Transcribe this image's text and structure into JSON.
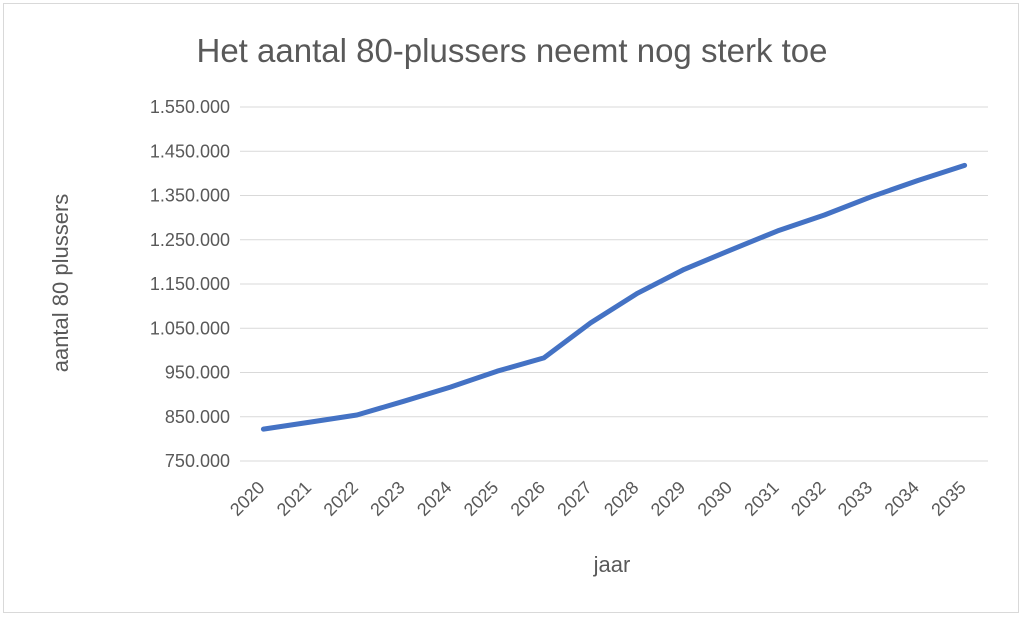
{
  "chart_data": {
    "type": "line",
    "title": "Het aantal 80-plussers neemt nog sterk toe",
    "xlabel": "jaar",
    "ylabel": "aantal 80 plussers",
    "categories": [
      "2020",
      "2021",
      "2022",
      "2023",
      "2024",
      "2025",
      "2026",
      "2027",
      "2028",
      "2029",
      "2030",
      "2031",
      "2032",
      "2033",
      "2034",
      "2035"
    ],
    "series": [
      {
        "values": [
          822000,
          838000,
          854000,
          885000,
          917000,
          953000,
          983000,
          1062000,
          1129000,
          1183000,
          1227000,
          1270000,
          1306000,
          1347000,
          1384000,
          1418000
        ]
      }
    ],
    "ylim": [
      750000,
      1550000
    ],
    "yticks": [
      750000,
      850000,
      950000,
      1050000,
      1150000,
      1250000,
      1350000,
      1450000,
      1550000
    ],
    "ytick_labels": [
      "750.000",
      "850.000",
      "950.000",
      "1.050.000",
      "1.150.000",
      "1.250.000",
      "1.350.000",
      "1.450.000",
      "1.550.000"
    ],
    "grid": true,
    "legend": "none",
    "colors": {
      "series": "#4472c4",
      "grid": "#d9d9d9",
      "text": "#595959"
    }
  }
}
